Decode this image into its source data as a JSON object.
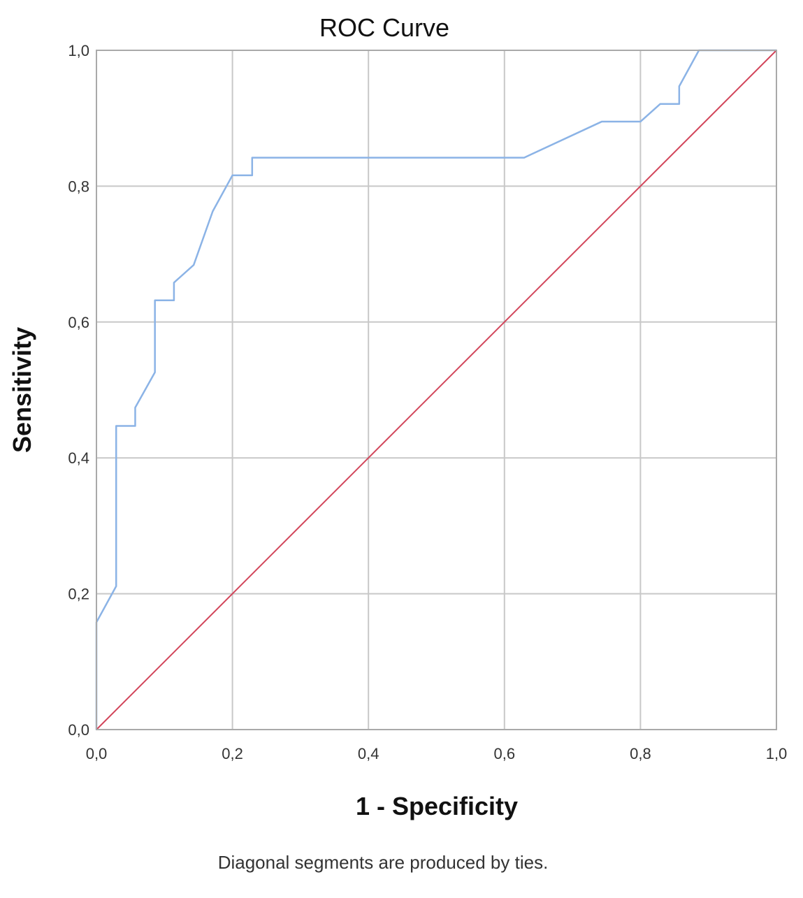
{
  "chart_data": {
    "type": "line",
    "title": "ROC Curve",
    "xlabel": "1 - Specificity",
    "ylabel": "Sensitivity",
    "footnote": "Diagonal segments are produced by ties.",
    "xlim": [
      0,
      1
    ],
    "ylim": [
      0,
      1
    ],
    "x_ticks": [
      "0,0",
      "0,2",
      "0,4",
      "0,6",
      "0,8",
      "1,0"
    ],
    "y_ticks": [
      "0,0",
      "0,2",
      "0,4",
      "0,6",
      "0,8",
      "1,0"
    ],
    "grid": true,
    "series": [
      {
        "color": "#8bb3e6",
        "points": [
          [
            0.0,
            0.0
          ],
          [
            0.0,
            0.158
          ],
          [
            0.029,
            0.211
          ],
          [
            0.029,
            0.447
          ],
          [
            0.057,
            0.447
          ],
          [
            0.057,
            0.474
          ],
          [
            0.086,
            0.526
          ],
          [
            0.086,
            0.632
          ],
          [
            0.114,
            0.632
          ],
          [
            0.114,
            0.658
          ],
          [
            0.143,
            0.684
          ],
          [
            0.171,
            0.763
          ],
          [
            0.2,
            0.816
          ],
          [
            0.229,
            0.816
          ],
          [
            0.229,
            0.842
          ],
          [
            0.629,
            0.842
          ],
          [
            0.743,
            0.895
          ],
          [
            0.8,
            0.895
          ],
          [
            0.829,
            0.921
          ],
          [
            0.857,
            0.921
          ],
          [
            0.857,
            0.947
          ],
          [
            0.886,
            1.0
          ],
          [
            1.0,
            1.0
          ]
        ]
      },
      {
        "color": "#d2455a",
        "points": [
          [
            0,
            0
          ],
          [
            1,
            1
          ]
        ]
      }
    ]
  }
}
